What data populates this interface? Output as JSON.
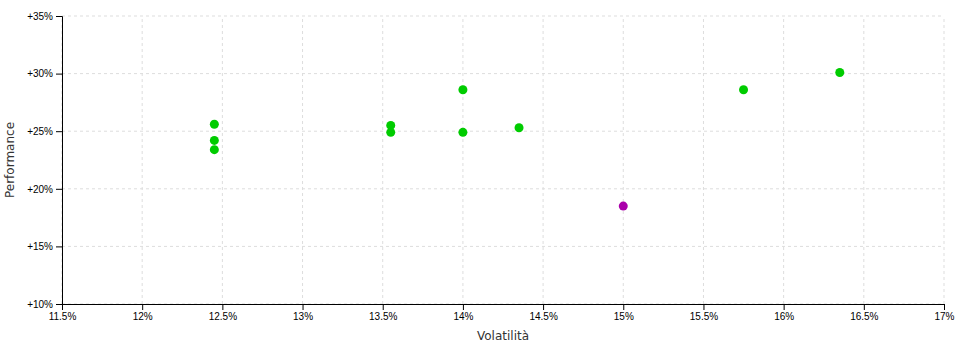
{
  "chart_data": {
    "type": "scatter",
    "xlabel": "Volatilità",
    "ylabel": "Performance",
    "xlim": [
      0.115,
      0.17
    ],
    "ylim": [
      0.1,
      0.35
    ],
    "xticks": [
      {
        "value": 0.115,
        "label": "11.5%"
      },
      {
        "value": 0.12,
        "label": "12%"
      },
      {
        "value": 0.125,
        "label": "12.5%"
      },
      {
        "value": 0.13,
        "label": "13%"
      },
      {
        "value": 0.135,
        "label": "13.5%"
      },
      {
        "value": 0.14,
        "label": "14%"
      },
      {
        "value": 0.145,
        "label": "14.5%"
      },
      {
        "value": 0.15,
        "label": "15%"
      },
      {
        "value": 0.155,
        "label": "15.5%"
      },
      {
        "value": 0.16,
        "label": "16%"
      },
      {
        "value": 0.165,
        "label": "16.5%"
      },
      {
        "value": 0.17,
        "label": "17%"
      }
    ],
    "yticks": [
      {
        "value": 0.1,
        "label": "+10%"
      },
      {
        "value": 0.15,
        "label": "+15%"
      },
      {
        "value": 0.2,
        "label": "+20%"
      },
      {
        "value": 0.25,
        "label": "+25%"
      },
      {
        "value": 0.3,
        "label": "+30%"
      },
      {
        "value": 0.35,
        "label": "+35%"
      }
    ],
    "grid": true,
    "series": [
      {
        "color": "#00cc00",
        "x": [
          0.1245,
          0.1245,
          0.1245,
          0.1355,
          0.1355,
          0.14,
          0.14,
          0.1435,
          0.1575,
          0.1635
        ],
        "values": [
          0.256,
          0.242,
          0.234,
          0.255,
          0.249,
          0.286,
          0.249,
          0.253,
          0.286,
          0.301
        ]
      },
      {
        "color": "#aa00aa",
        "x": [
          0.15
        ],
        "values": [
          0.185
        ]
      }
    ]
  }
}
